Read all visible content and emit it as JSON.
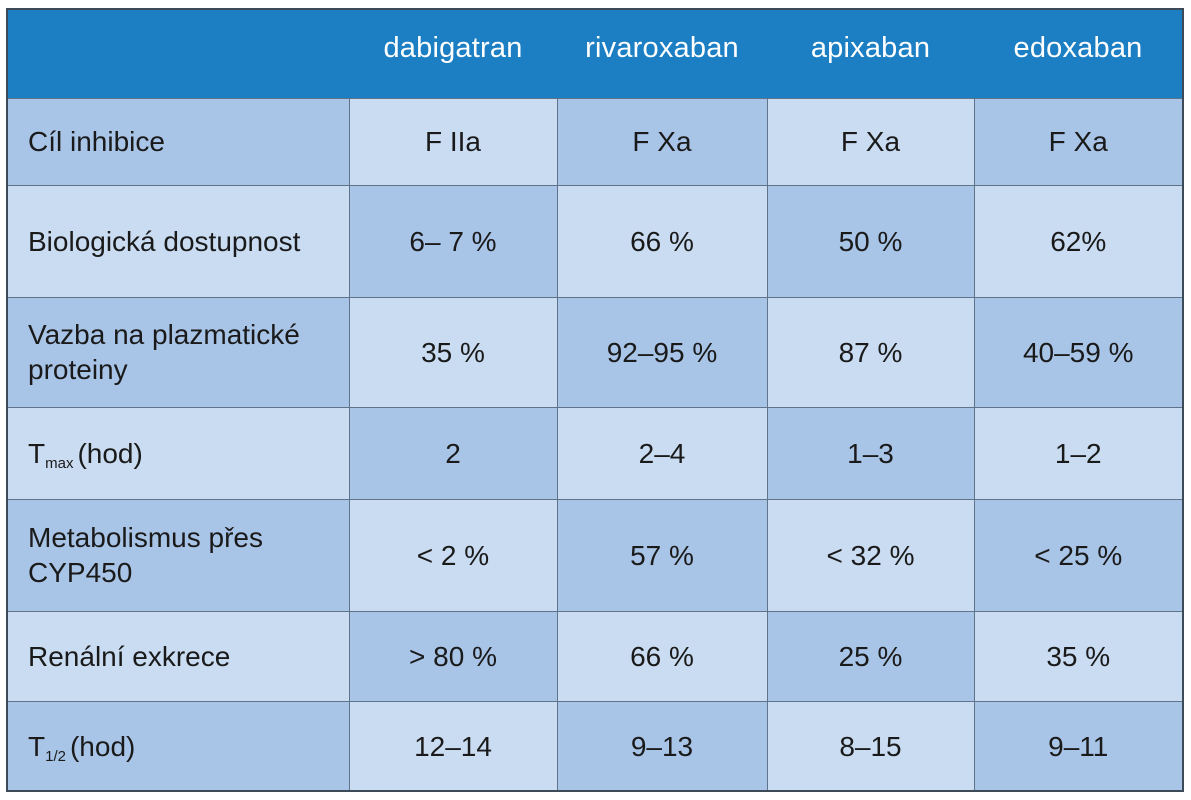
{
  "header": {
    "columns": [
      "",
      "dabigatran",
      "rivaroxaban",
      "apixaban",
      "edoxaban"
    ]
  },
  "rows": [
    {
      "label": "Cíl inhibice",
      "values": [
        "F IIa",
        "F Xa",
        "F Xa",
        "F Xa"
      ]
    },
    {
      "label": "Biologická dostupnost",
      "values": [
        "6– 7 %",
        "66 %",
        "50 %",
        "62%"
      ]
    },
    {
      "label": "Vazba na plazmatické proteiny",
      "values": [
        "35 %",
        "92–95 %",
        "87 %",
        "40–59 %"
      ]
    },
    {
      "label_main": "T",
      "label_sub": "max",
      "label_rest": "(hod)",
      "values": [
        "2",
        "2–4",
        "1–3",
        "1–2"
      ]
    },
    {
      "label": "Metabolismus přes CYP450",
      "values": [
        "< 2 %",
        "57 %",
        "< 32 %",
        "< 25 %"
      ]
    },
    {
      "label": "Renální exkrece",
      "values": [
        "> 80 %",
        "66 %",
        "25 %",
        "35 %"
      ]
    },
    {
      "label_main": "T",
      "label_sub": "1/2",
      "label_rest": "(hod)",
      "values": [
        "12–14",
        "9–13",
        "8–15",
        "9–11"
      ]
    }
  ],
  "colors": {
    "header_bg": "#1c7fc4",
    "cell_dark": "#a8c4e7",
    "cell_light": "#c9dcf1",
    "border": "#5f7489"
  }
}
